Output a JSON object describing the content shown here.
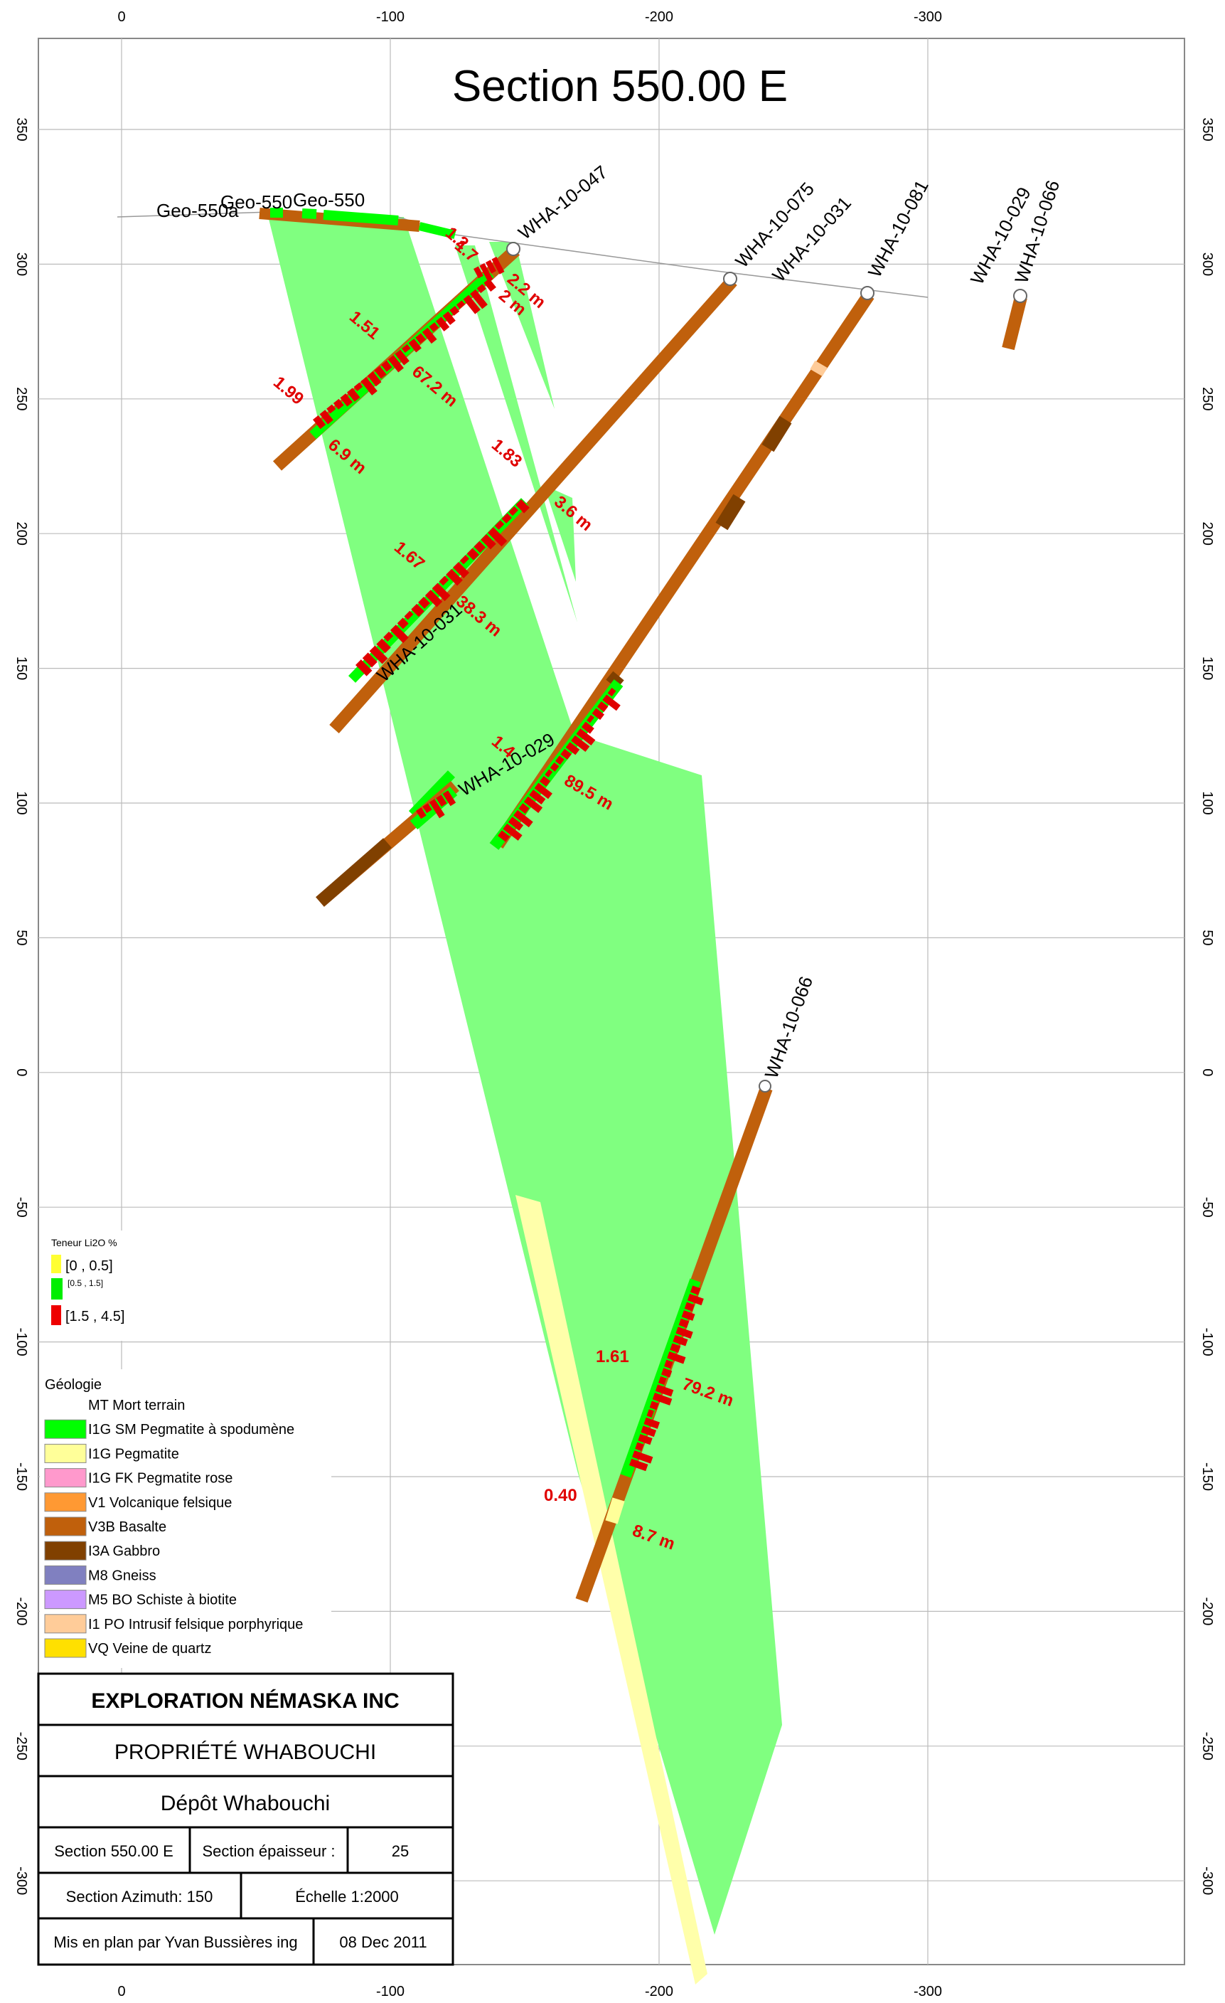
{
  "title": "Section 550.00 E",
  "axes": {
    "x_ticks": [
      "0",
      "-100",
      "-200",
      "-300"
    ],
    "y_ticks": [
      "350",
      "300",
      "250",
      "200",
      "150",
      "100",
      "50",
      "0",
      "-50",
      "-100",
      "-150",
      "-200",
      "-250",
      "-300"
    ]
  },
  "collar_labels": [
    "Geo-550a",
    "Geo-550",
    "Geo-550",
    "WHA-10-047",
    "WHA-10-075",
    "WHA-10-031",
    "WHA-10-081",
    "WHA-10-029",
    "WHA-10-066"
  ],
  "hole_labels": [
    "WHA-10-031",
    "WHA-10-029",
    "WHA-10-066"
  ],
  "intercepts": {
    "grades": [
      "1.2",
      "1.7",
      "1.51",
      "1.99",
      "1.83",
      "1.67",
      "1.4",
      "1.61",
      "0.40"
    ],
    "lengths": [
      "2.2 m",
      "2 m",
      "67.2 m",
      "6.9 m",
      "3.6 m",
      "38.3 m",
      "89.5 m",
      "79.2 m",
      "8.7 m"
    ]
  },
  "grade_legend": {
    "title": "Teneur Li2O %",
    "items": [
      {
        "label": "[0 , 0.5]",
        "color": "#ffff33"
      },
      {
        "label": "[0.5 , 1.5]",
        "color": "#00ee00"
      },
      {
        "label": "[1.5 , 4.5]",
        "color": "#ee0000"
      }
    ]
  },
  "geology_legend": {
    "title": "Géologie",
    "items": [
      {
        "label": "MT Mort terrain",
        "color": "#ffffff",
        "swatch": false
      },
      {
        "label": "I1G SM Pegmatite à spodumène",
        "color": "#00ff00",
        "swatch": true
      },
      {
        "label": "I1G      Pegmatite",
        "color": "#ffff99",
        "swatch": true
      },
      {
        "label": "I1G FK Pegmatite rose",
        "color": "#ff99cc",
        "swatch": true
      },
      {
        "label": "V1 Volcanique felsique",
        "color": "#ff9933",
        "swatch": true
      },
      {
        "label": "V3B Basalte",
        "color": "#c0600c",
        "swatch": true
      },
      {
        "label": "I3A Gabbro",
        "color": "#804000",
        "swatch": true
      },
      {
        "label": "M8 Gneiss",
        "color": "#8080c0",
        "swatch": true
      },
      {
        "label": "M5 BO Schiste à biotite",
        "color": "#cc99ff",
        "swatch": true
      },
      {
        "label": "I1 PO Intrusif felsique porphyrique",
        "color": "#ffcc99",
        "swatch": true
      },
      {
        "label": "VQ Veine de quartz",
        "color": "#ffe000",
        "swatch": true
      }
    ]
  },
  "title_block": {
    "company": "EXPLORATION NÉMASKA INC",
    "property": "PROPRIÉTÉ WHABOUCHI",
    "deposit": "Dépôt Whabouchi",
    "section": "Section 550.00 E",
    "thickness_label": "Section épaisseur :",
    "thickness_value": "25",
    "azimuth": "Section Azimuth: 150",
    "scale": "Échelle   1:2000",
    "author": "Mis en plan par Yvan Bussières ing",
    "date": "08 Dec 2011"
  },
  "colors": {
    "pegmatite_zone": "#80ff80",
    "pegmatite_barren": "#ffffaa",
    "basalt": "#c0600c",
    "gabbro": "#804000",
    "spodumene": "#00ff00",
    "assay": "#e00000"
  }
}
